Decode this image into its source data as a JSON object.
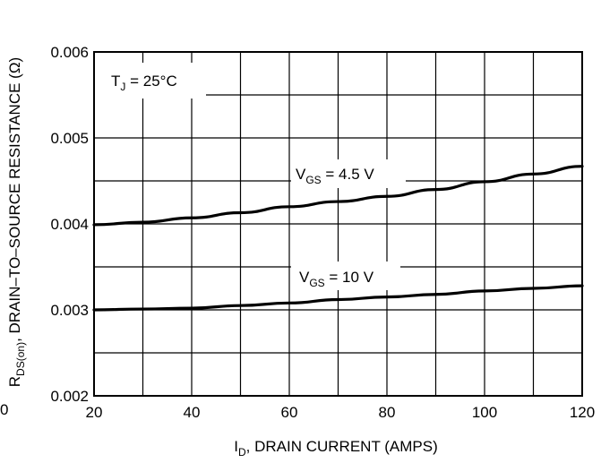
{
  "chart_data": {
    "type": "line",
    "xlabel": {
      "main": "I",
      "sub": "D",
      "rest": ", DRAIN CURRENT (AMPS)"
    },
    "ylabel": {
      "main": "R",
      "sub": "DS(on)",
      "rest": ", DRAIN–TO–SOURCE RESISTANCE (Ω)"
    },
    "xlim": [
      20,
      120
    ],
    "ylim": [
      0.002,
      0.006
    ],
    "x_ticks": [
      20,
      40,
      60,
      80,
      100,
      120
    ],
    "x_tick_labels": [
      "20",
      "40",
      "60",
      "80",
      "100",
      "120"
    ],
    "y_ticks": [
      0.002,
      0.003,
      0.004,
      0.005,
      0.006
    ],
    "y_tick_labels": [
      "0.002",
      "0.003",
      "0.004",
      "0.005",
      "0.006"
    ],
    "grid": true,
    "y_edge_label": "0",
    "annotation": {
      "main": "T",
      "sub": "J",
      "rest": " = 25°C"
    },
    "series": [
      {
        "label": {
          "main": "V",
          "sub": "GS",
          "rest": " = 4.5 V"
        },
        "x": [
          20,
          30,
          40,
          50,
          60,
          70,
          80,
          90,
          100,
          110,
          120
        ],
        "y": [
          0.00399,
          0.00402,
          0.00407,
          0.00413,
          0.0042,
          0.00426,
          0.00432,
          0.0044,
          0.00449,
          0.00458,
          0.00467
        ]
      },
      {
        "label": {
          "main": "V",
          "sub": "GS",
          "rest": " = 10 V"
        },
        "x": [
          20,
          30,
          40,
          50,
          60,
          70,
          80,
          90,
          100,
          110,
          120
        ],
        "y": [
          0.003,
          0.00301,
          0.00302,
          0.00305,
          0.00308,
          0.00312,
          0.00315,
          0.00318,
          0.00322,
          0.00325,
          0.00328
        ]
      }
    ]
  }
}
